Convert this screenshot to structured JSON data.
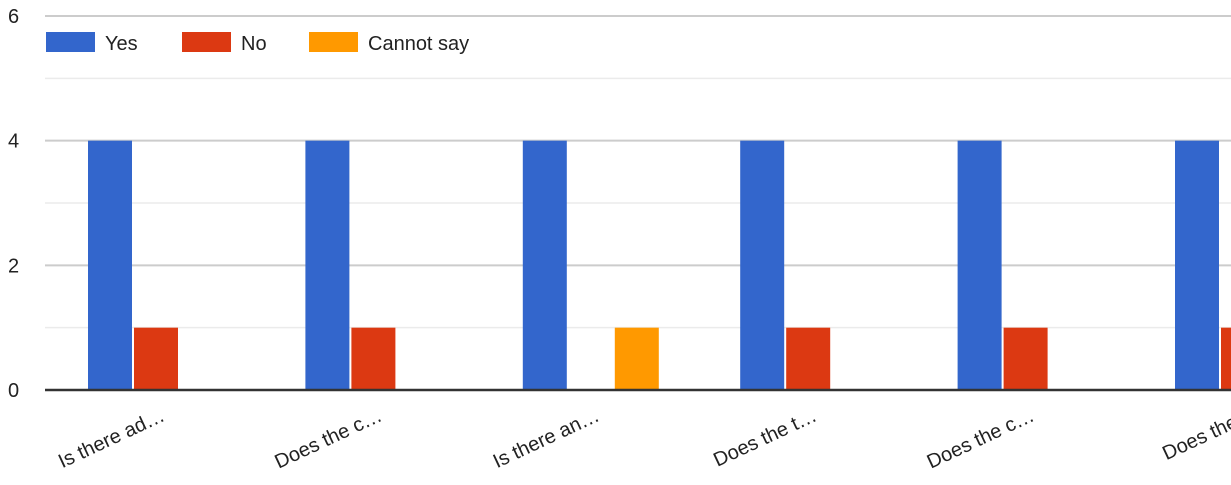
{
  "chart_data": {
    "type": "bar",
    "categories": [
      "Is there ad…",
      "Does the c…",
      "Is there an…",
      "Does the t…",
      "Does the c…",
      "Does the c"
    ],
    "series": [
      {
        "name": "Yes",
        "color": "#3366cc",
        "values": [
          4,
          4,
          4,
          4,
          4,
          4
        ]
      },
      {
        "name": "No",
        "color": "#dc3912",
        "values": [
          1,
          1,
          0,
          1,
          1,
          1
        ]
      },
      {
        "name": "Cannot say",
        "color": "#ff9900",
        "values": [
          0,
          0,
          1,
          0,
          0,
          0
        ]
      }
    ],
    "ylim": [
      0,
      6
    ],
    "yticks": [
      "0",
      "2",
      "4",
      "6"
    ],
    "grid": true,
    "legend_position": "top-left",
    "title": "",
    "xlabel": "",
    "ylabel": ""
  }
}
